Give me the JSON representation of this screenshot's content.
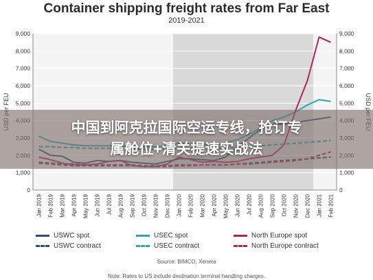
{
  "overlay": {
    "headline_line1": "中国到阿克拉国际空运专线，抢订专",
    "headline_line2": "属舱位+清关提速实战法"
  },
  "chart_data": {
    "type": "line",
    "title": "Container shipping freight rates from Far East",
    "subtitle": "2019-2021",
    "ylabel": "USD per FEU",
    "ylim": [
      0,
      9000
    ],
    "yticks": [
      0,
      1000,
      2000,
      3000,
      4000,
      5000,
      6000,
      7000,
      8000,
      9000
    ],
    "ytick_labels": [
      "0",
      "1,000",
      "2,000",
      "3,000",
      "4,000",
      "5,000",
      "6,000",
      "7,000",
      "8,000",
      "9,000"
    ],
    "grid": true,
    "shaded_period": [
      "Jan 2020",
      "Dec 2020"
    ],
    "categories": [
      "Jan 2019",
      "Feb 2019",
      "Mar 2019",
      "Apr 2019",
      "May 2019",
      "Jun 2019",
      "Jul 2019",
      "Aug 2019",
      "Sep 2019",
      "Oct 2019",
      "Nov 2019",
      "Dec 2019",
      "Jan 2020",
      "Feb 2020",
      "Mar 2020",
      "Apr 2020",
      "May 2020",
      "Jun 2020",
      "Jul 2020",
      "Aug 2020",
      "Sep 2020",
      "Oct 2020",
      "Nov 2020",
      "Dec 2020",
      "Jan 2021",
      "Feb 2021"
    ],
    "series": [
      {
        "name": "USWC spot",
        "color": "#2a4f7a",
        "style": "solid",
        "values": [
          2350,
          2000,
          1950,
          1600,
          1550,
          1700,
          1650,
          1700,
          1600,
          1550,
          1500,
          1650,
          1800,
          1800,
          1750,
          1700,
          1900,
          2500,
          3000,
          3500,
          3800,
          3800,
          3900,
          4000,
          4100,
          4200
        ]
      },
      {
        "name": "USWC contract",
        "color": "#2a4f7a",
        "style": "dashed",
        "values": [
          1600,
          1550,
          1500,
          1500,
          1450,
          1450,
          1450,
          1450,
          1450,
          1400,
          1400,
          1400,
          1450,
          1450,
          1450,
          1450,
          1450,
          1500,
          1550,
          1600,
          1650,
          1700,
          1750,
          1800,
          1850,
          1900
        ]
      },
      {
        "name": "USEC spot",
        "color": "#2ba6b0",
        "style": "solid",
        "values": [
          3100,
          2800,
          2700,
          2600,
          2550,
          2550,
          2550,
          2550,
          2500,
          2500,
          2500,
          2550,
          2700,
          2650,
          2600,
          2600,
          2700,
          2900,
          3200,
          3600,
          4000,
          4200,
          4500,
          4900,
          5200,
          5100
        ]
      },
      {
        "name": "USEC contract",
        "color": "#2ba6b0",
        "style": "dashed",
        "values": [
          2500,
          2500,
          2450,
          2450,
          2400,
          2400,
          2400,
          2400,
          2400,
          2350,
          2350,
          2350,
          2400,
          2400,
          2400,
          2400,
          2400,
          2450,
          2500,
          2550,
          2600,
          2650,
          2700,
          2750,
          2800,
          2850
        ]
      },
      {
        "name": "North Europe spot",
        "color": "#b0245c",
        "style": "solid",
        "values": [
          1900,
          1750,
          1550,
          1450,
          1450,
          1500,
          1650,
          1700,
          1400,
          1350,
          1350,
          1500,
          1900,
          1750,
          1600,
          1650,
          1600,
          1650,
          1800,
          1900,
          2000,
          2600,
          4600,
          6300,
          8800,
          8500
        ]
      },
      {
        "name": "North Europe contract",
        "color": "#b0245c",
        "style": "dashed",
        "values": [
          1550,
          1500,
          1450,
          1400,
          1400,
          1400,
          1400,
          1400,
          1400,
          1350,
          1350,
          1350,
          1400,
          1400,
          1450,
          1450,
          1450,
          1500,
          1500,
          1550,
          1600,
          1650,
          1700,
          1800,
          2000,
          2200
        ]
      }
    ]
  },
  "legend": {
    "uswc_spot": "USWC spot",
    "uswc_contract": "USWC contract",
    "usec_spot": "USEC spot",
    "usec_contract": "USEC contract",
    "ne_spot": "North Europe spot",
    "ne_contract": "North Europe contract"
  },
  "source": "Source: BIMCO, Xeneta",
  "note": "Note: Rates to US include destination terminal handling charges."
}
